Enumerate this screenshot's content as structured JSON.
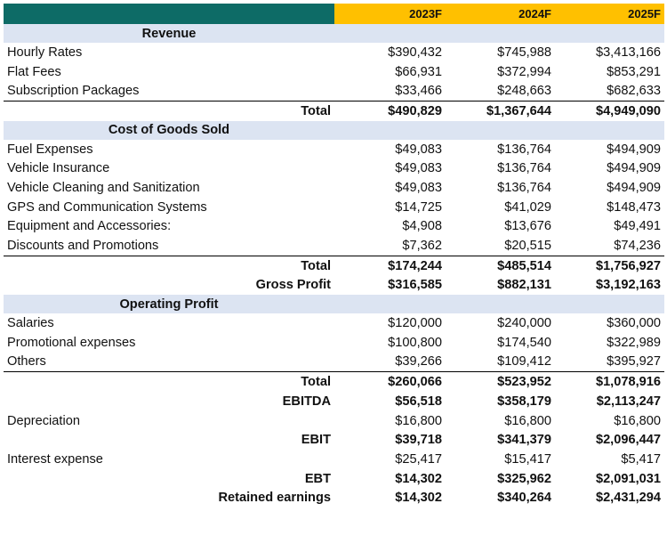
{
  "header": {
    "cols": [
      "2023F",
      "2024F",
      "2025F"
    ]
  },
  "revenue": {
    "title": "Revenue",
    "rows": [
      {
        "label": "Hourly Rates",
        "v": [
          "$390,432",
          "$745,988",
          "$3,413,166"
        ]
      },
      {
        "label": "Flat Fees",
        "v": [
          "$66,931",
          "$372,994",
          "$853,291"
        ]
      },
      {
        "label": "Subscription Packages",
        "v": [
          "$33,466",
          "$248,663",
          "$682,633"
        ]
      }
    ],
    "total": {
      "label": "Total",
      "v": [
        "$490,829",
        "$1,367,644",
        "$4,949,090"
      ]
    }
  },
  "cogs": {
    "title": "Cost of Goods Sold",
    "rows": [
      {
        "label": "Fuel Expenses",
        "v": [
          "$49,083",
          "$136,764",
          "$494,909"
        ]
      },
      {
        "label": "Vehicle Insurance",
        "v": [
          "$49,083",
          "$136,764",
          "$494,909"
        ]
      },
      {
        "label": "Vehicle Cleaning and Sanitization",
        "v": [
          "$49,083",
          "$136,764",
          "$494,909"
        ]
      },
      {
        "label": "GPS and Communication Systems",
        "v": [
          "$14,725",
          "$41,029",
          "$148,473"
        ]
      },
      {
        "label": "Equipment and Accessories:",
        "v": [
          "$4,908",
          "$13,676",
          "$49,491"
        ]
      },
      {
        "label": "Discounts and Promotions",
        "v": [
          "$7,362",
          "$20,515",
          "$74,236"
        ]
      }
    ],
    "total": {
      "label": "Total",
      "v": [
        "$174,244",
        "$485,514",
        "$1,756,927"
      ]
    },
    "gross": {
      "label": "Gross Profit",
      "v": [
        "$316,585",
        "$882,131",
        "$3,192,163"
      ]
    }
  },
  "opex": {
    "title": "Operating Profit",
    "rows": [
      {
        "label": "Salaries",
        "v": [
          "$120,000",
          "$240,000",
          "$360,000"
        ]
      },
      {
        "label": "Promotional expenses",
        "v": [
          "$100,800",
          "$174,540",
          "$322,989"
        ]
      },
      {
        "label": "Others",
        "v": [
          "$39,266",
          "$109,412",
          "$395,927"
        ]
      }
    ],
    "total": {
      "label": "Total",
      "v": [
        "$260,066",
        "$523,952",
        "$1,078,916"
      ]
    },
    "ebitda": {
      "label": "EBITDA",
      "v": [
        "$56,518",
        "$358,179",
        "$2,113,247"
      ]
    },
    "depreciation": {
      "label": "Depreciation",
      "v": [
        "$16,800",
        "$16,800",
        "$16,800"
      ]
    },
    "ebit": {
      "label": "EBIT",
      "v": [
        "$39,718",
        "$341,379",
        "$2,096,447"
      ]
    },
    "interest": {
      "label": "Interest expense",
      "v": [
        "$25,417",
        "$15,417",
        "$5,417"
      ]
    },
    "ebt": {
      "label": "EBT",
      "v": [
        "$14,302",
        "$325,962",
        "$2,091,031"
      ]
    },
    "retained": {
      "label": "Retained earnings",
      "v": [
        "$14,302",
        "$340,264",
        "$2,431,294"
      ]
    }
  },
  "colors": {
    "header_dark": "#0d6b66",
    "header_accent": "#ffc000",
    "section_bg": "#dce4f2"
  }
}
